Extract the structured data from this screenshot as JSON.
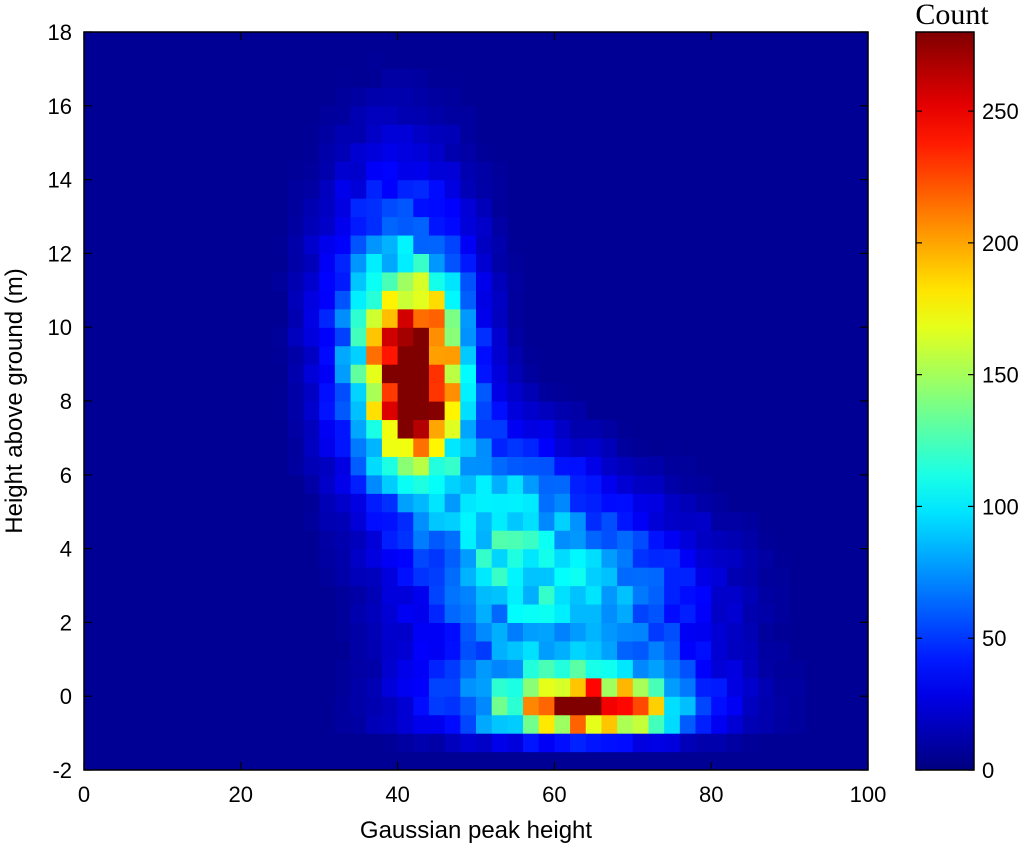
{
  "chart_data": {
    "type": "heatmap",
    "xlabel": "Gaussian peak height",
    "ylabel": "Height above ground (m)",
    "xlim": [
      0,
      100
    ],
    "ylim": [
      -2,
      18
    ],
    "x_ticks": [
      "0",
      "20",
      "40",
      "60",
      "80",
      "100"
    ],
    "y_ticks": [
      "-2",
      "0",
      "2",
      "4",
      "6",
      "8",
      "10",
      "12",
      "14",
      "16",
      "18"
    ],
    "colorbar": {
      "title": "Count",
      "range": [
        0,
        280
      ],
      "ticks": [
        "0",
        "50",
        "100",
        "150",
        "200",
        "250"
      ],
      "colormap": "jet"
    },
    "grid": false,
    "bins": {
      "x_step": 2,
      "y_step": 0.5
    },
    "components": [
      {
        "description": "upper cluster",
        "center": [
          42,
          8.7
        ],
        "spread": [
          4,
          1.6
        ],
        "peak_count": 275
      },
      {
        "description": "upper cluster halo",
        "center": [
          40,
          10
        ],
        "spread": [
          7,
          3.2
        ],
        "peak_count": 80
      },
      {
        "description": "middle band",
        "center": [
          62,
          2.5
        ],
        "spread": [
          12,
          2.0
        ],
        "peak_count": 85
      },
      {
        "description": "ground peak",
        "center": [
          65,
          -0.3
        ],
        "spread": [
          6,
          0.45
        ],
        "peak_count": 205
      },
      {
        "description": "ground band",
        "center": [
          62,
          -0.3
        ],
        "spread": [
          13,
          0.9
        ],
        "peak_count": 75
      },
      {
        "description": "diagonal bridge",
        "center": [
          53,
          5
        ],
        "spread": [
          7,
          1.6
        ],
        "peak_count": 70
      }
    ]
  }
}
